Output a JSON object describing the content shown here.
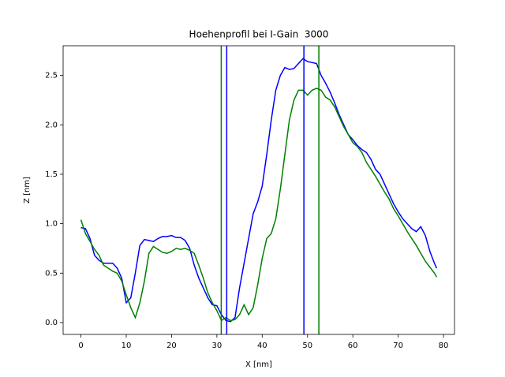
{
  "chart_data": {
    "type": "line",
    "title": "Hoehenprofil bei I-Gain  3000",
    "xlabel": "X [nm]",
    "ylabel": "Z [nm]",
    "x": [
      0,
      1,
      2,
      3,
      4,
      5,
      6,
      7,
      8,
      9,
      10,
      11,
      12,
      13,
      14,
      15,
      16,
      17,
      18,
      19,
      20,
      21,
      22,
      23,
      24,
      25,
      26,
      27,
      28,
      29,
      30,
      31,
      32,
      33,
      34,
      35,
      36,
      37,
      38,
      39,
      40,
      41,
      42,
      43,
      44,
      45,
      46,
      47,
      48,
      49,
      50,
      51,
      52,
      53,
      54,
      55,
      56,
      57,
      58,
      59,
      60,
      61,
      62,
      63,
      64,
      65,
      66,
      67,
      68,
      69,
      70,
      71,
      72,
      73,
      74,
      75,
      76,
      77,
      78,
      78.5
    ],
    "series": [
      {
        "color": "#0000ff",
        "values": [
          0.96,
          0.95,
          0.85,
          0.68,
          0.63,
          0.6,
          0.6,
          0.6,
          0.55,
          0.45,
          0.2,
          0.25,
          0.5,
          0.78,
          0.84,
          0.83,
          0.82,
          0.85,
          0.87,
          0.87,
          0.88,
          0.86,
          0.86,
          0.83,
          0.75,
          0.58,
          0.45,
          0.35,
          0.25,
          0.18,
          0.17,
          0.08,
          0.02,
          0.01,
          0.05,
          0.35,
          0.6,
          0.85,
          1.1,
          1.22,
          1.38,
          1.7,
          2.05,
          2.35,
          2.5,
          2.58,
          2.56,
          2.57,
          2.62,
          2.67,
          2.64,
          2.63,
          2.62,
          2.5,
          2.42,
          2.33,
          2.22,
          2.1,
          2.0,
          1.9,
          1.85,
          1.79,
          1.75,
          1.72,
          1.65,
          1.55,
          1.5,
          1.4,
          1.3,
          1.2,
          1.12,
          1.05,
          1.0,
          0.95,
          0.92,
          0.97,
          0.88,
          0.72,
          0.6,
          0.55
        ]
      },
      {
        "color": "#008000",
        "values": [
          1.04,
          0.9,
          0.82,
          0.74,
          0.68,
          0.58,
          0.55,
          0.52,
          0.5,
          0.42,
          0.28,
          0.15,
          0.05,
          0.2,
          0.42,
          0.7,
          0.77,
          0.74,
          0.71,
          0.7,
          0.72,
          0.75,
          0.74,
          0.75,
          0.73,
          0.7,
          0.58,
          0.45,
          0.3,
          0.2,
          0.12,
          0.02,
          0.05,
          0.02,
          0.03,
          0.08,
          0.18,
          0.08,
          0.15,
          0.38,
          0.65,
          0.85,
          0.9,
          1.05,
          1.35,
          1.7,
          2.05,
          2.25,
          2.35,
          2.35,
          2.3,
          2.35,
          2.37,
          2.35,
          2.28,
          2.25,
          2.18,
          2.08,
          1.98,
          1.9,
          1.82,
          1.78,
          1.72,
          1.62,
          1.55,
          1.48,
          1.4,
          1.32,
          1.25,
          1.15,
          1.08,
          1.0,
          0.92,
          0.85,
          0.78,
          0.7,
          0.62,
          0.56,
          0.5,
          0.46
        ]
      }
    ],
    "vlines": [
      {
        "x": 30.96,
        "color": "#008000"
      },
      {
        "x": 32.17,
        "color": "#0000ff"
      },
      {
        "x": 49.2,
        "color": "#0000ff"
      },
      {
        "x": 52.5,
        "color": "#008000"
      }
    ],
    "xlim": [
      -3.93,
      82.43
    ],
    "xticks": [
      0,
      10,
      20,
      30,
      40,
      50,
      60,
      70,
      80
    ],
    "ylim": [
      -0.12,
      2.8
    ],
    "yticks": [
      {
        "value": 0,
        "label": "0.0"
      },
      {
        "value": 0.5,
        "label": "0.5"
      },
      {
        "value": 1,
        "label": "1.0"
      },
      {
        "value": 1.5,
        "label": "1.5"
      },
      {
        "value": 2,
        "label": "2.0"
      },
      {
        "value": 2.5,
        "label": "2.5"
      }
    ]
  }
}
